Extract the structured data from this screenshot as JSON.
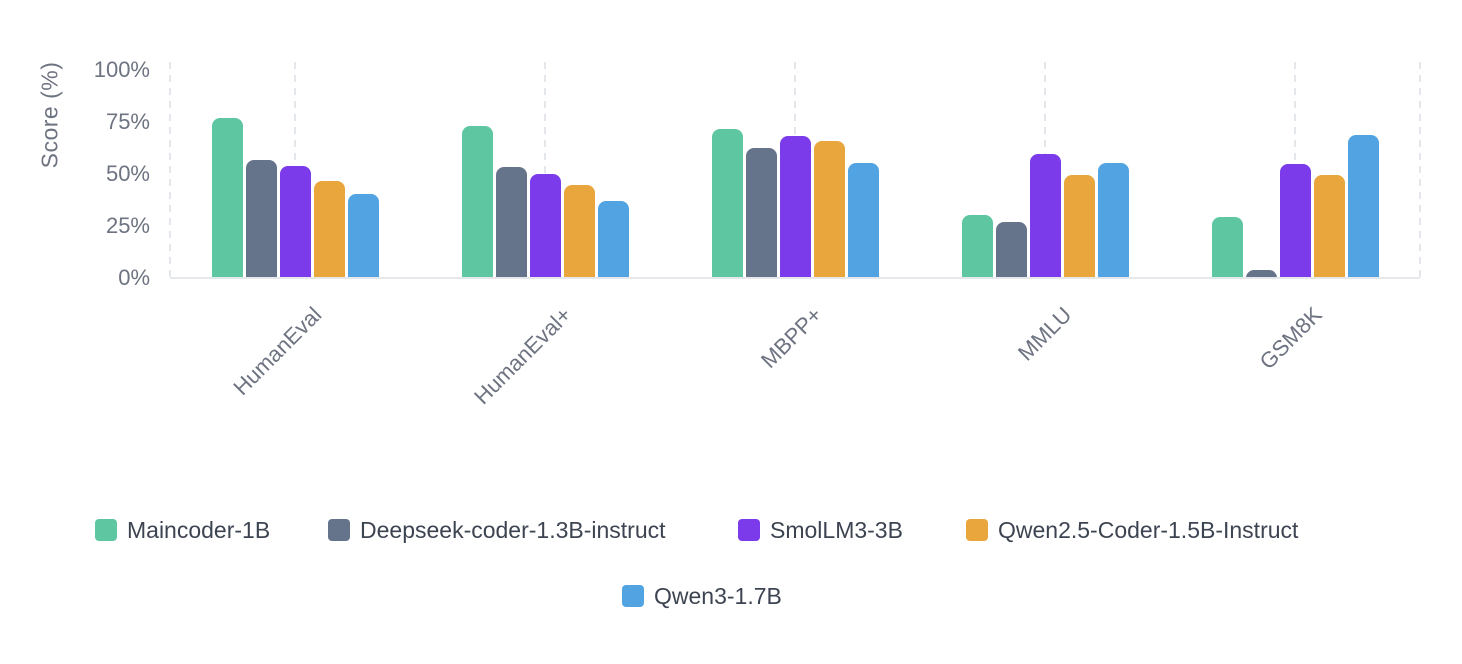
{
  "chart_data": {
    "type": "bar",
    "title": "",
    "xlabel": "",
    "ylabel": "Score (%)",
    "categories": [
      "HumanEval",
      "HumanEval+",
      "MBPP+",
      "MMLU",
      "GSM8K"
    ],
    "series": [
      {
        "name": "Maincoder-1B",
        "color": "#5EC7A2",
        "values": [
          76.8,
          73.0,
          71.5,
          30.5,
          29.5
        ]
      },
      {
        "name": "Deepseek-coder-1.3B-instruct",
        "color": "#66748B",
        "values": [
          56.5,
          53.5,
          62.5,
          26.8,
          3.8
        ]
      },
      {
        "name": "SmolLM3-3B",
        "color": "#7B3BEB",
        "values": [
          53.8,
          50.2,
          68.3,
          59.5,
          55.0
        ]
      },
      {
        "name": "Qwen2.5-Coder-1.5B-Instruct",
        "color": "#E8A63C",
        "values": [
          46.5,
          44.5,
          66.0,
          49.5,
          49.5
        ]
      },
      {
        "name": "Qwen3-1.7B",
        "color": "#51A3E1",
        "values": [
          40.5,
          37.2,
          55.5,
          55.5,
          68.7
        ]
      }
    ],
    "ylim": [
      0,
      100
    ],
    "ytick_labels": [
      "0%",
      "25%",
      "50%",
      "75%",
      "100%"
    ],
    "ytick_values": [
      0,
      25,
      50,
      75,
      100
    ],
    "grid": "vertical-dashed",
    "legend_position": "bottom"
  }
}
